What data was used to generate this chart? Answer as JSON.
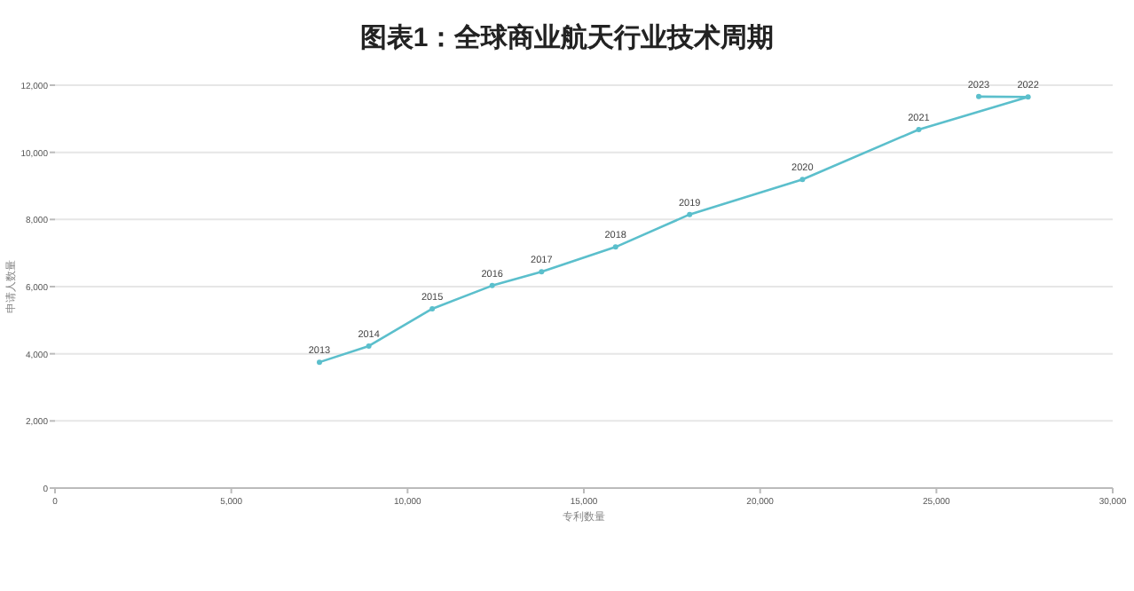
{
  "chart_data": {
    "type": "line",
    "title": "图表1：全球商业航天行业技术周期",
    "xlabel": "专利数量",
    "ylabel": "申请人数量",
    "xlim": [
      0,
      30000
    ],
    "xticks": [
      {
        "value": 0,
        "label": "0"
      },
      {
        "value": 5000,
        "label": "5,000"
      },
      {
        "value": 10000,
        "label": "10,000"
      },
      {
        "value": 15000,
        "label": "15,000"
      },
      {
        "value": 20000,
        "label": "20,000"
      },
      {
        "value": 25000,
        "label": "25,000"
      },
      {
        "value": 30000,
        "label": "30,000"
      }
    ],
    "ylim": [
      0,
      12000
    ],
    "yticks": [
      {
        "value": 0,
        "label": "0"
      },
      {
        "value": 2000,
        "label": "2,000"
      },
      {
        "value": 4000,
        "label": "4,000"
      },
      {
        "value": 6000,
        "label": "6,000"
      },
      {
        "value": 8000,
        "label": "8,000"
      },
      {
        "value": 10000,
        "label": "10,000"
      },
      {
        "value": 12000,
        "label": "12,000"
      }
    ],
    "grid": "y",
    "marker": "circle",
    "line_style": "solid",
    "series": [
      {
        "color": "#5bbfcc",
        "x": [
          7500,
          8900,
          10700,
          12400,
          13800,
          15900,
          18000,
          21200,
          24500,
          27600,
          26200
        ],
        "values": [
          3750,
          4230,
          5340,
          6030,
          6440,
          7180,
          8150,
          9190,
          10680,
          11650,
          11660
        ]
      }
    ],
    "annotations": [
      {
        "text": "2013",
        "x": 7500,
        "y": 3750
      },
      {
        "text": "2014",
        "x": 8900,
        "y": 4230
      },
      {
        "text": "2015",
        "x": 10700,
        "y": 5340
      },
      {
        "text": "2016",
        "x": 12400,
        "y": 6030
      },
      {
        "text": "2017",
        "x": 13800,
        "y": 6440
      },
      {
        "text": "2018",
        "x": 15900,
        "y": 7180
      },
      {
        "text": "2019",
        "x": 18000,
        "y": 8150
      },
      {
        "text": "2020",
        "x": 21200,
        "y": 9190
      },
      {
        "text": "2021",
        "x": 24500,
        "y": 10680
      },
      {
        "text": "2022",
        "x": 27600,
        "y": 11650
      },
      {
        "text": "2023",
        "x": 26200,
        "y": 11660
      }
    ]
  }
}
